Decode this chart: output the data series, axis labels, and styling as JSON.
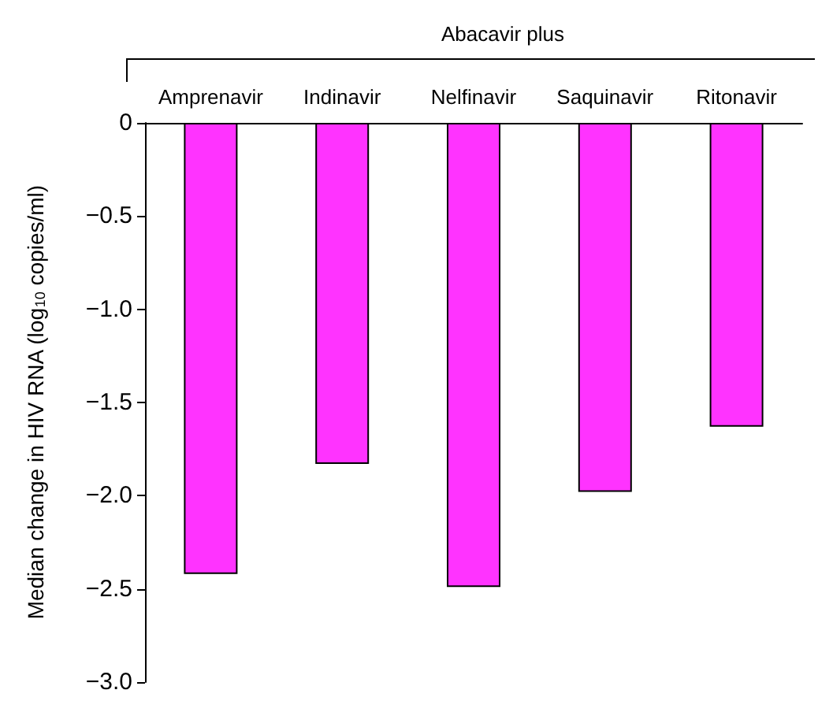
{
  "chart_data": {
    "type": "bar",
    "title": "Abacavir plus",
    "ylabel": "Median change in HIV RNA (log$_{10}$ copies/ml)",
    "categories": [
      "Amprenavir",
      "Indinavir",
      "Nelfinavir",
      "Saquinavir",
      "Ritonavir"
    ],
    "series": [
      {
        "color": "#ff33ff",
        "values": [
          -2.42,
          -1.83,
          -2.49,
          -1.98,
          -1.63
        ]
      }
    ],
    "ylim": [
      -3,
      0
    ],
    "yticks": [
      {
        "value": -3,
        "label": "−3.0"
      },
      {
        "value": -2.5,
        "label": "−2.5"
      },
      {
        "value": -2,
        "label": "−2.0"
      },
      {
        "value": -1.5,
        "label": "−1.5"
      },
      {
        "value": -1,
        "label": "−1.0"
      },
      {
        "value": -0.5,
        "label": "−0.5"
      },
      0
    ],
    "grid": false
  }
}
